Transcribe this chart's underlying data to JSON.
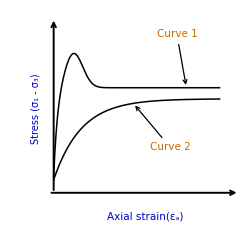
{
  "background_color": "#ffffff",
  "xlabel": "Axial strain(εₐ)",
  "ylabel": "Stress (σ₁ - σ₃)",
  "xlabel_color": "#0000cc",
  "ylabel_color": "#0000cc",
  "curve1_label": "Curve 1",
  "curve2_label": "Curve 2",
  "label_color": "#cc6600",
  "axis_color": "#000000",
  "curve_color": "#000000",
  "figsize": [
    2.52,
    2.43
  ],
  "dpi": 100
}
